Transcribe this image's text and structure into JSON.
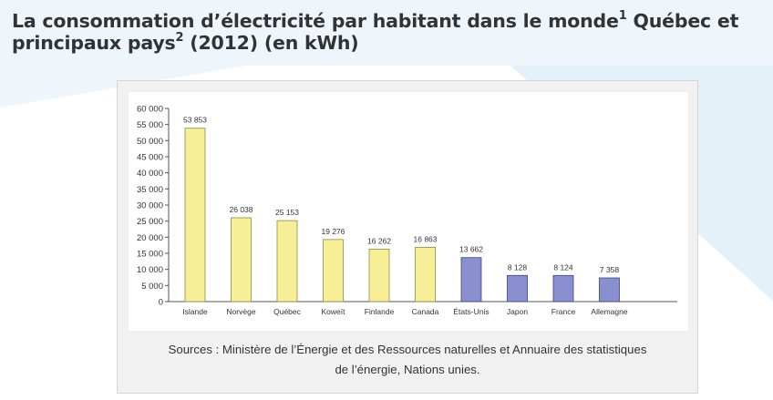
{
  "header": {
    "title_part1": "La consommation d’électricité par habitant dans le monde",
    "sup1": "1",
    "title_part2": " Québec et",
    "title_part3": "principaux pays",
    "sup2": "2",
    "title_part4": " (2012) (en kWh)"
  },
  "source": {
    "line1": "Sources : Ministère de l’Énergie et des Ressources naturelles et Annuaire des statistiques",
    "line2": "de l’énergie, Nations unies."
  },
  "colors": {
    "bar_yellow": "#f7ef97",
    "bar_yellow_stroke": "#8f8a43",
    "bar_blue": "#8a8fd0",
    "bar_blue_stroke": "#3e4280",
    "axis": "#555555",
    "text": "#333333"
  },
  "chart_data": {
    "type": "bar",
    "title": "",
    "xlabel": "",
    "ylabel": "",
    "ylim": [
      0,
      60000
    ],
    "ytick_step": 5000,
    "ytick_labels": [
      "0",
      "5 000",
      "10 000",
      "15 000",
      "20 000",
      "25 000",
      "30 000",
      "35 000",
      "40 000",
      "45 000",
      "50 000",
      "55 000",
      "60 000"
    ],
    "grid": false,
    "categories": [
      "Islande",
      "Norvège",
      "Québec",
      "Koweït",
      "Finlande",
      "Canada",
      "États-Unis",
      "Japon",
      "France",
      "Allemagne"
    ],
    "values": [
      53853,
      26038,
      25153,
      19276,
      16262,
      16863,
      13662,
      8128,
      8124,
      7358
    ],
    "value_labels": [
      "53 853",
      "26 038",
      "25 153",
      "19 276",
      "16 262",
      "16 863",
      "13 662",
      "8 128",
      "8 124",
      "7 358"
    ],
    "bar_colors": [
      "yellow",
      "yellow",
      "yellow",
      "yellow",
      "yellow",
      "yellow",
      "blue",
      "blue",
      "blue",
      "blue"
    ]
  }
}
